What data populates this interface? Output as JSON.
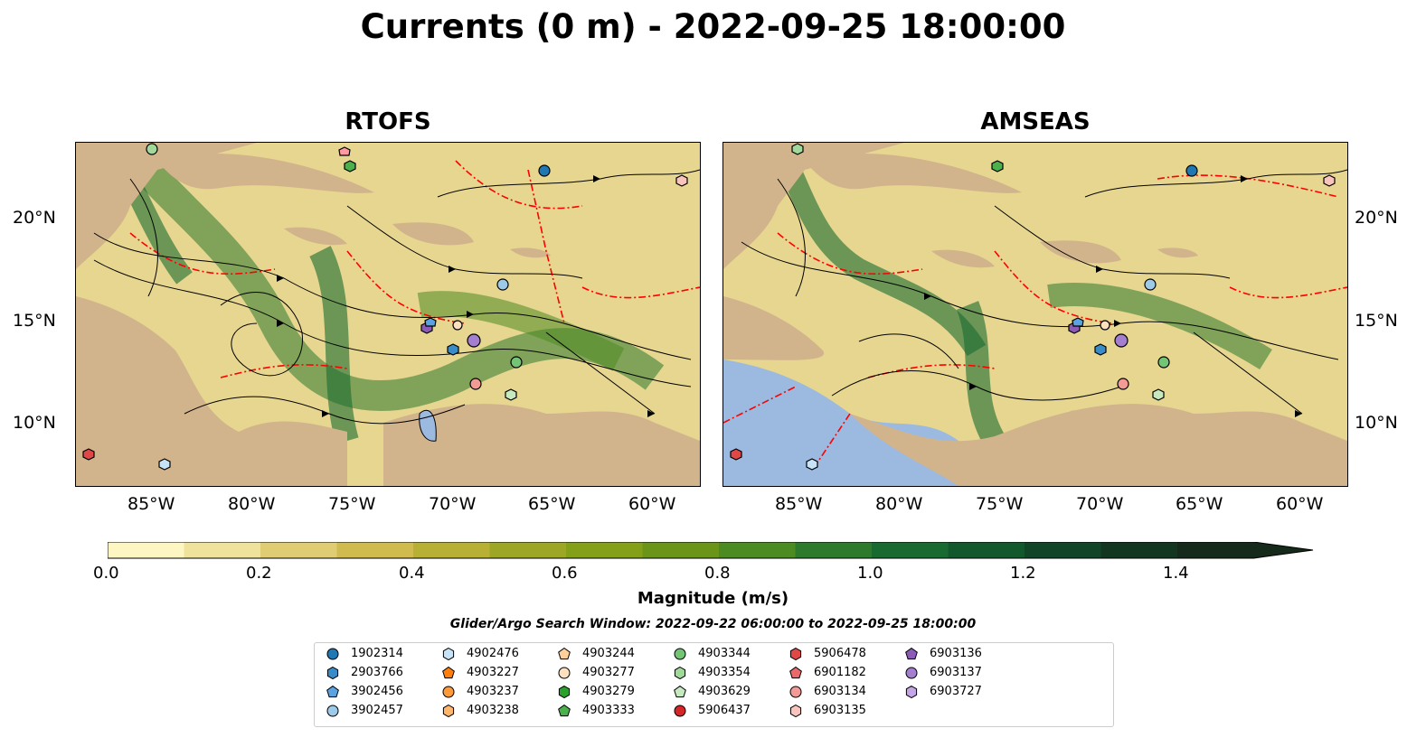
{
  "title": "Currents (0 m) - 2022-09-25 18:00:00",
  "panels": [
    {
      "title": "RTOFS"
    },
    {
      "title": "AMSEAS"
    }
  ],
  "axes": {
    "x_ticks": [
      "85°W",
      "80°W",
      "75°W",
      "70°W",
      "65°W",
      "60°W"
    ],
    "y_ticks": [
      "20°N",
      "15°N",
      "10°N"
    ]
  },
  "colorbar": {
    "label": "Magnitude (m/s)",
    "ticks": [
      "0.0",
      "0.2",
      "0.4",
      "0.6",
      "0.8",
      "1.0",
      "1.2",
      "1.4"
    ],
    "colors": [
      "#fdf6c3",
      "#efe29a",
      "#e0cc73",
      "#cfbb4e",
      "#b8b035",
      "#9ea625",
      "#84a018",
      "#6a9518",
      "#4c8a22",
      "#2e7a2c",
      "#196a30",
      "#13582d",
      "#124527",
      "#133620",
      "#152a1a"
    ]
  },
  "search_window": "Glider/Argo Search Window: 2022-09-22 06:00:00 to 2022-09-25 18:00:00",
  "legend": [
    {
      "id": "1902314",
      "marker": "circle",
      "color": "#1f77b4"
    },
    {
      "id": "2903766",
      "marker": "hexagon",
      "color": "#3a8cc9"
    },
    {
      "id": "3902456",
      "marker": "pentagon",
      "color": "#5aa3e0"
    },
    {
      "id": "3902457",
      "marker": "circle",
      "color": "#9ecae9"
    },
    {
      "id": "4902476",
      "marker": "hexagon",
      "color": "#c6e3f7"
    },
    {
      "id": "4903227",
      "marker": "pentagon",
      "color": "#ff7f0e"
    },
    {
      "id": "4903237",
      "marker": "circle",
      "color": "#fd9a3a"
    },
    {
      "id": "4903238",
      "marker": "hexagon",
      "color": "#fdb66b"
    },
    {
      "id": "4903244",
      "marker": "pentagon",
      "color": "#fdcf9b"
    },
    {
      "id": "4903277",
      "marker": "circle",
      "color": "#fde0c0"
    },
    {
      "id": "4903279",
      "marker": "hexagon",
      "color": "#2ca02c"
    },
    {
      "id": "4903333",
      "marker": "pentagon",
      "color": "#4cb04c"
    },
    {
      "id": "4903344",
      "marker": "circle",
      "color": "#74c476"
    },
    {
      "id": "4903354",
      "marker": "hexagon",
      "color": "#a1d99b"
    },
    {
      "id": "4903629",
      "marker": "pentagon",
      "color": "#c7e9c0"
    },
    {
      "id": "5906437",
      "marker": "circle",
      "color": "#d62728"
    },
    {
      "id": "5906478",
      "marker": "hexagon",
      "color": "#e04848"
    },
    {
      "id": "6901182",
      "marker": "pentagon",
      "color": "#e86a6a"
    },
    {
      "id": "6903134",
      "marker": "circle",
      "color": "#f29a95"
    },
    {
      "id": "6903135",
      "marker": "hexagon",
      "color": "#f8c4bd"
    },
    {
      "id": "6903136",
      "marker": "pentagon",
      "color": "#8c5bb5"
    },
    {
      "id": "6903137",
      "marker": "circle",
      "color": "#a57fcf"
    },
    {
      "id": "6903727",
      "marker": "hexagon",
      "color": "#c4a5e6"
    }
  ],
  "map_colors": {
    "land": "#d2b48c",
    "water": "#e6d690",
    "pacific": "#9cb9e0",
    "eez_line": "#ff0000",
    "streamline": "#000000"
  }
}
